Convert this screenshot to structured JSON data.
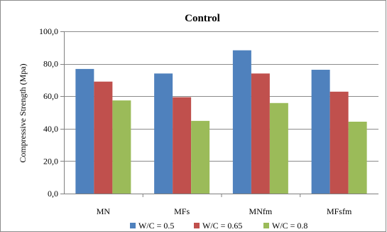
{
  "chart_data": {
    "type": "bar",
    "title": "Control",
    "xlabel": "",
    "ylabel": "Compressive Strength (Mpa)",
    "categories": [
      "MN",
      "MFs",
      "MNfm",
      "MFsfm"
    ],
    "series": [
      {
        "name": "W/C = 0.5",
        "color": "#4F81BD",
        "values": [
          76.8,
          74.0,
          88.3,
          76.3
        ]
      },
      {
        "name": "W/C = 0.65",
        "color": "#C0504D",
        "values": [
          69.0,
          59.4,
          74.0,
          62.8
        ]
      },
      {
        "name": "W/C = 0.8",
        "color": "#9BBB59",
        "values": [
          57.4,
          44.8,
          55.8,
          44.3
        ]
      }
    ],
    "ylim": [
      0,
      100
    ],
    "yticks": [
      0,
      20,
      40,
      60,
      80,
      100
    ],
    "ytick_labels": [
      "0,0",
      "20,0",
      "40,0",
      "60,0",
      "80,0",
      "100,0"
    ],
    "grid": true,
    "legend": "bottom"
  }
}
